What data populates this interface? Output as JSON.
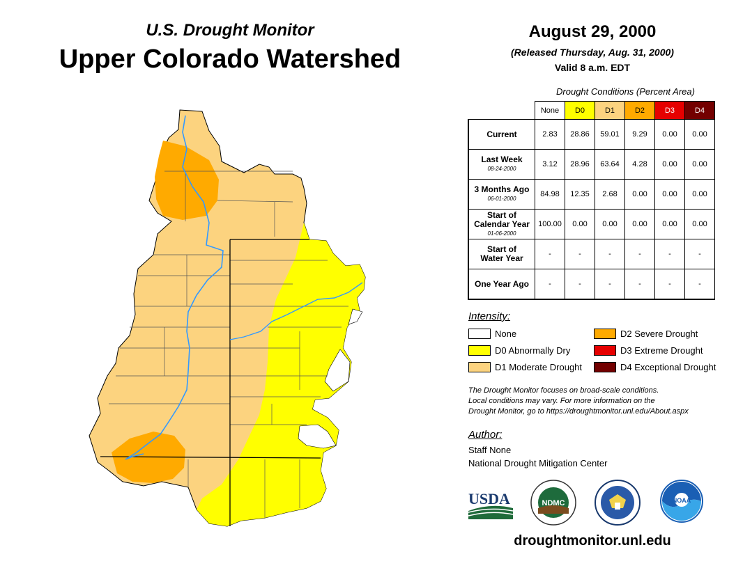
{
  "header": {
    "subtitle": "U.S. Drought Monitor",
    "title": "Upper Colorado Watershed",
    "date": "August 29, 2000",
    "released": "(Released Thursday, Aug. 31, 2000)",
    "valid": "Valid 8 a.m. EDT"
  },
  "table": {
    "caption": "Drought Conditions (Percent Area)",
    "columns": [
      {
        "label": "None",
        "color": "#ffffff",
        "text_color": "#000000"
      },
      {
        "label": "D0",
        "color": "#ffff00",
        "text_color": "#000000"
      },
      {
        "label": "D1",
        "color": "#fcd37f",
        "text_color": "#000000"
      },
      {
        "label": "D2",
        "color": "#ffaa00",
        "text_color": "#000000"
      },
      {
        "label": "D3",
        "color": "#e60000",
        "text_color": "#ffffff"
      },
      {
        "label": "D4",
        "color": "#730000",
        "text_color": "#ffffff"
      }
    ],
    "rows": [
      {
        "label": "Current",
        "label2": "",
        "date": "",
        "values": [
          "2.83",
          "28.86",
          "59.01",
          "9.29",
          "0.00",
          "0.00"
        ]
      },
      {
        "label": "Last Week",
        "label2": "",
        "date": "08-24-2000",
        "values": [
          "3.12",
          "28.96",
          "63.64",
          "4.28",
          "0.00",
          "0.00"
        ]
      },
      {
        "label": "3 Months Ago",
        "label2": "",
        "date": "06-01-2000",
        "values": [
          "84.98",
          "12.35",
          "2.68",
          "0.00",
          "0.00",
          "0.00"
        ]
      },
      {
        "label": "Start of",
        "label2": "Calendar Year",
        "date": "01-06-2000",
        "values": [
          "100.00",
          "0.00",
          "0.00",
          "0.00",
          "0.00",
          "0.00"
        ]
      },
      {
        "label": "Start of",
        "label2": "Water Year",
        "date": "",
        "values": [
          "-",
          "-",
          "-",
          "-",
          "-",
          "-"
        ]
      },
      {
        "label": "One Year Ago",
        "label2": "",
        "date": "",
        "values": [
          "-",
          "-",
          "-",
          "-",
          "-",
          "-"
        ]
      }
    ]
  },
  "legend": {
    "title": "Intensity:",
    "items": [
      {
        "label": "None",
        "color": "#ffffff"
      },
      {
        "label": "D0 Abnormally Dry",
        "color": "#ffff00"
      },
      {
        "label": "D1 Moderate Drought",
        "color": "#fcd37f"
      },
      {
        "label": "D2 Severe Drought",
        "color": "#ffaa00"
      },
      {
        "label": "D3 Extreme Drought",
        "color": "#e60000"
      },
      {
        "label": "D4 Exceptional Drought",
        "color": "#730000"
      }
    ]
  },
  "note": {
    "line1": "The Drought Monitor focuses on broad-scale conditions.",
    "line2": "Local conditions may vary. For more information on the",
    "line3": "Drought Monitor, go to https://droughtmonitor.unl.edu/About.aspx"
  },
  "author": {
    "title": "Author:",
    "name": "Staff None",
    "org": "National Drought Mitigation Center"
  },
  "logos": {
    "usda": "USDA",
    "ndmc": "NDMC",
    "noaa": "NOAA"
  },
  "website": "droughtmonitor.unl.edu",
  "map_colors": {
    "d1": "#fcd37f",
    "d0": "#ffff00",
    "d2": "#ffaa00",
    "river": "#3399ff"
  }
}
